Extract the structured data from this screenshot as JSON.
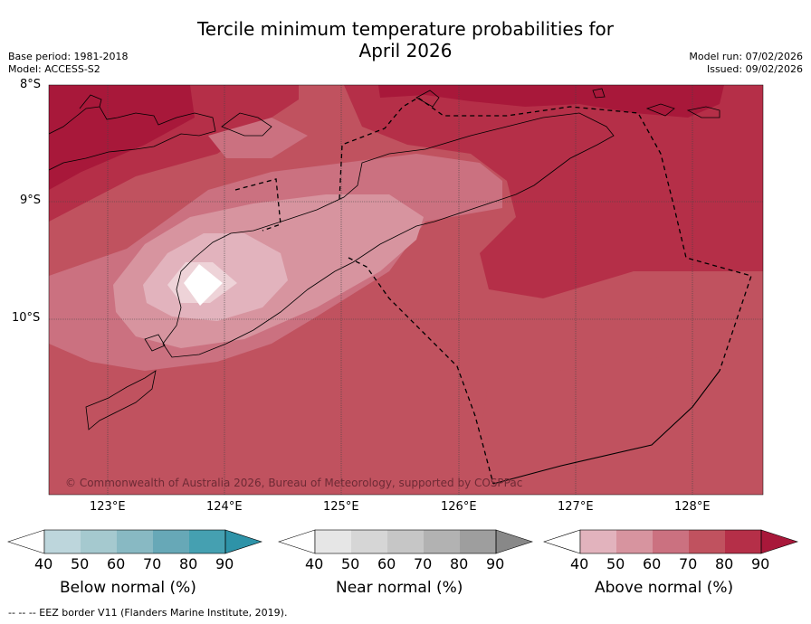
{
  "title_line1": "Tercile minimum temperature probabilities for",
  "title_line2": "April 2026",
  "meta_left": {
    "base_period": "Base period: 1981-2018",
    "model": "Model: ACCESS-S2"
  },
  "meta_right": {
    "model_run": "Model run: 07/02/2026",
    "issued": "Issued: 09/02/2026"
  },
  "lat_labels": [
    "8°S",
    "9°S",
    "10°S"
  ],
  "lon_labels": [
    "123°E",
    "124°E",
    "125°E",
    "126°E",
    "127°E",
    "128°E"
  ],
  "copyright": "© Commonwealth of Australia 2026, Bureau of Meteorology, supported by COSPPac",
  "colorbars": [
    {
      "label": "Below normal (%)",
      "ticks": [
        "40",
        "50",
        "60",
        "70",
        "80",
        "90"
      ],
      "colors": [
        "#ffffff",
        "#bdd6dc",
        "#a5c9cf",
        "#88b9c3",
        "#67a8b7",
        "#45a0b1",
        "#2e93a8"
      ]
    },
    {
      "label": "Near normal (%)",
      "ticks": [
        "40",
        "50",
        "60",
        "70",
        "80",
        "90"
      ],
      "colors": [
        "#ffffff",
        "#e6e6e6",
        "#d6d6d6",
        "#c6c6c6",
        "#b2b2b2",
        "#9e9e9e",
        "#888888"
      ]
    },
    {
      "label": "Above normal (%)",
      "ticks": [
        "40",
        "50",
        "60",
        "70",
        "80",
        "90"
      ],
      "colors": [
        "#ffffff",
        "#e2b3bd",
        "#d7949f",
        "#cb7180",
        "#c0525f",
        "#b52f48",
        "#a8183a"
      ]
    }
  ],
  "footer": "--  --  -- EEZ border V11 (Flanders Marine Institute, 2019)."
}
